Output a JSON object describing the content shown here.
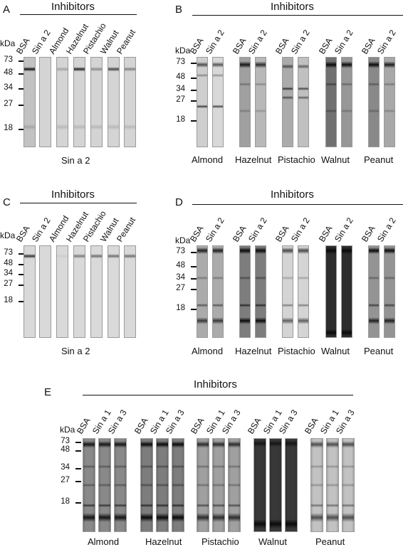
{
  "inhibitors_label": "Inhibitors",
  "kda_label": "kDa",
  "panels": {
    "A": {
      "letter": "A",
      "mw": [
        "73",
        "48",
        "34",
        "27",
        "18"
      ],
      "lanes": [
        "BSA",
        "Sin a 2",
        "Almond",
        "Hazelnut",
        "Pistachio",
        "Walnut",
        "Peanut"
      ],
      "caption": "Sin a 2"
    },
    "B": {
      "letter": "B",
      "mw": [
        "73",
        "48",
        "34",
        "27",
        "18"
      ],
      "lanes": [
        "BSA",
        "Sin a 2"
      ],
      "groups": [
        "Almond",
        "Hazelnut",
        "Pistachio",
        "Walnut",
        "Peanut"
      ]
    },
    "C": {
      "letter": "C",
      "mw": [
        "73",
        "48",
        "34",
        "27",
        "18"
      ],
      "lanes": [
        "BSA",
        "Sin a 2",
        "Almond",
        "Hazelnut",
        "Pistachio",
        "Walnut",
        "Peanut"
      ],
      "caption": "Sin a 2"
    },
    "D": {
      "letter": "D",
      "mw": [
        "73",
        "48",
        "34",
        "27",
        "18"
      ],
      "lanes": [
        "BSA",
        "Sin a 2"
      ],
      "groups": [
        "Almond",
        "Hazelnut",
        "Pistachio",
        "Walnut",
        "Peanut"
      ]
    },
    "E": {
      "letter": "E",
      "mw": [
        "73",
        "48",
        "34",
        "27",
        "18"
      ],
      "lanes": [
        "BSA",
        "Sin a 1",
        "Sin a 3"
      ],
      "groups": [
        "Almond",
        "Hazelnut",
        "Pistachio",
        "Walnut",
        "Peanut"
      ]
    }
  },
  "colors": {
    "strip_light": "#e4e4e4",
    "band_dark": "#111111"
  }
}
